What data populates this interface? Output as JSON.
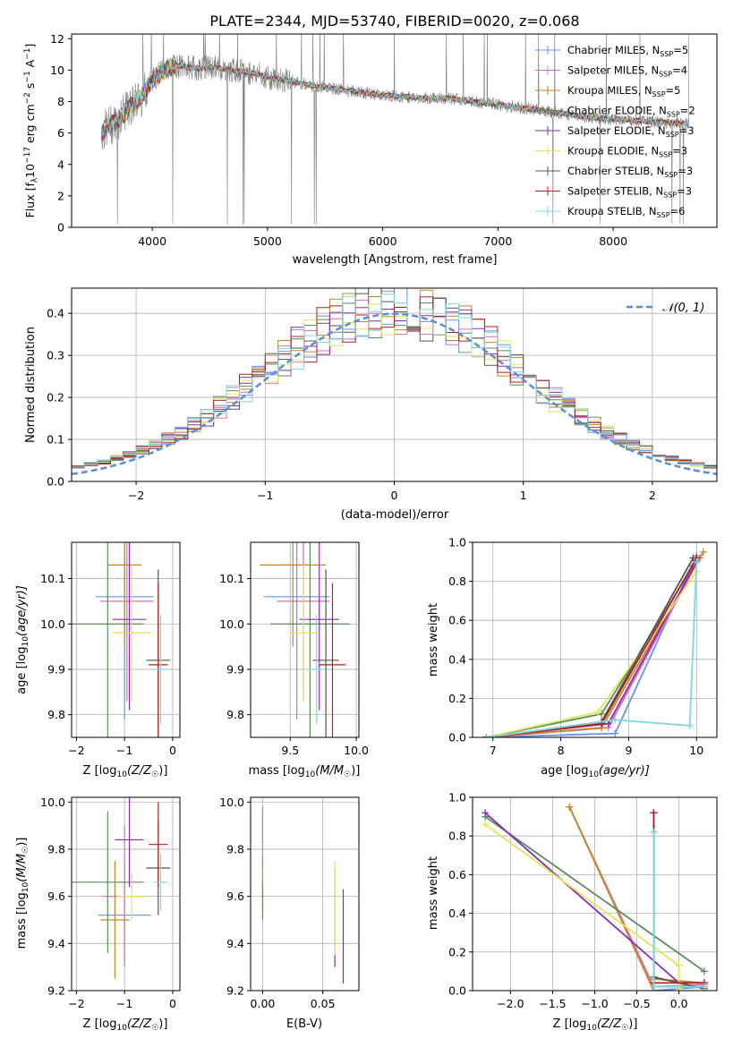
{
  "title": "PLATE=2344, MJD=53740, FIBERID=0020, z=0.068",
  "colors": [
    "#6495ED",
    "#DB70B8",
    "#C08A1E",
    "#5B8C5A",
    "#8B2BB9",
    "#E3E35A",
    "#555555",
    "#B22222",
    "#7FD7E0"
  ],
  "spectrum": {
    "xlabel": "wavelength [Angstrom, rest frame]",
    "ylabel_parts": [
      "Flux [f",
      "λ",
      "10",
      "−17",
      " erg cm",
      "−2",
      " s",
      "−1",
      " A",
      "−1",
      "]"
    ],
    "xticks": [
      "4000",
      "5000",
      "6000",
      "7000",
      "8000"
    ],
    "yticks": [
      "0",
      "2",
      "4",
      "6",
      "8",
      "10",
      "12"
    ],
    "xlim": [
      3300,
      8900
    ],
    "ylim": [
      0,
      12.3
    ],
    "legend": [
      {
        "name": "Chabrier MILES, N",
        "sub": "SSP",
        "val": "=5"
      },
      {
        "name": "Salpeter MILES, N",
        "sub": "SSP",
        "val": "=4"
      },
      {
        "name": "Kroupa MILES, N",
        "sub": "SSP",
        "val": "=5"
      },
      {
        "name": "Chabrier ELODIE, N",
        "sub": "SSP",
        "val": "=2"
      },
      {
        "name": "Salpeter ELODIE, N",
        "sub": "SSP",
        "val": "=3"
      },
      {
        "name": "Kroupa ELODIE, N",
        "sub": "SSP",
        "val": "=3"
      },
      {
        "name": "Chabrier STELIB, N",
        "sub": "SSP",
        "val": "=3"
      },
      {
        "name": "Salpeter STELIB, N",
        "sub": "SSP",
        "val": "=3"
      },
      {
        "name": "Kroupa STELIB, N",
        "sub": "SSP",
        "val": "=6"
      }
    ]
  },
  "chart_data": [
    {
      "type": "line",
      "title": "PLATE=2344, MJD=53740, FIBERID=0020, z=0.068",
      "xlabel": "wavelength [Angstrom, rest frame]",
      "ylabel": "Flux [fλ10−17 erg cm−2 s−1 A−1]",
      "xlim": [
        3300,
        8900
      ],
      "ylim": [
        0,
        12.3
      ],
      "series": [
        {
          "name": "data",
          "x": [
            3560,
            3600,
            3700,
            3800,
            3900,
            4000,
            4100,
            4200,
            4300,
            4400,
            4500,
            4600,
            4700,
            4800,
            4900,
            5000,
            5200,
            5400,
            5600,
            5800,
            6000,
            6200,
            6400,
            6600,
            6800,
            7000,
            7200,
            7400,
            7600,
            7800,
            8000,
            8200,
            8400,
            8600
          ],
          "y": [
            6.0,
            6.3,
            6.8,
            7.6,
            8.3,
            9.4,
            10.0,
            10.3,
            10.2,
            10.1,
            10.2,
            10.1,
            10.0,
            9.9,
            9.8,
            9.5,
            9.3,
            9.0,
            8.8,
            8.6,
            8.4,
            8.3,
            8.2,
            8.2,
            8.0,
            7.8,
            7.6,
            7.4,
            7.2,
            7.0,
            6.9,
            6.8,
            6.7,
            6.6
          ]
        }
      ]
    },
    {
      "type": "bar",
      "xlabel": "(data-model)/error",
      "ylabel": "Normed distribution",
      "xlim": [
        -2.5,
        2.5
      ],
      "ylim": [
        0,
        0.46
      ],
      "bin_width": 0.1,
      "reference_curve": "𝒩(0, 1)",
      "series": [
        {
          "name": "histogram envelope",
          "values": [
            0.04,
            0.05,
            0.06,
            0.06,
            0.08,
            0.1,
            0.13,
            0.17,
            0.22,
            0.26,
            0.3,
            0.34,
            0.37,
            0.39,
            0.4,
            0.39,
            0.37,
            0.34,
            0.3,
            0.26,
            0.21,
            0.17,
            0.13,
            0.09,
            0.07,
            0.05,
            0.04
          ]
        }
      ]
    },
    {
      "type": "scatter",
      "xlabel": "Z [log10(Z/Z☉)]",
      "ylabel": "age [log10(age/yr)]",
      "xlim": [
        -2.1,
        0.15
      ],
      "ylim": [
        9.75,
        10.18
      ],
      "points": [
        {
          "x": -1.0,
          "y": 10.06,
          "xerr": 0.6,
          "yerr": 0.27
        },
        {
          "x": -0.95,
          "y": 10.05,
          "xerr": 0.55,
          "yerr": 0.22
        },
        {
          "x": -1.0,
          "y": 10.13,
          "xerr": 0.35,
          "yerr": 0.18
        },
        {
          "x": -1.35,
          "y": 10.0,
          "xerr": 0.75,
          "yerr": 0.25
        },
        {
          "x": -0.9,
          "y": 10.01,
          "xerr": 0.35,
          "yerr": 0.2
        },
        {
          "x": -0.85,
          "y": 9.98,
          "xerr": 0.4,
          "yerr": 0.15
        },
        {
          "x": -0.3,
          "y": 9.92,
          "xerr": 0.25,
          "yerr": 0.2
        },
        {
          "x": -0.3,
          "y": 9.91,
          "xerr": 0.2,
          "yerr": 0.18
        },
        {
          "x": -0.25,
          "y": 9.9,
          "xerr": 0.15,
          "yerr": 0.12
        }
      ]
    },
    {
      "type": "scatter",
      "xlabel": "mass [log10(M/M☉)]",
      "ylabel": "",
      "xlim": [
        9.2,
        10.02
      ],
      "ylim": [
        9.75,
        10.18
      ],
      "points": [
        {
          "x": 9.55,
          "y": 10.06,
          "xerr": 0.25,
          "yerr": 0.27
        },
        {
          "x": 9.6,
          "y": 10.05,
          "xerr": 0.2,
          "yerr": 0.22
        },
        {
          "x": 9.52,
          "y": 10.13,
          "xerr": 0.25,
          "yerr": 0.18
        },
        {
          "x": 9.65,
          "y": 10.0,
          "xerr": 0.3,
          "yerr": 0.25
        },
        {
          "x": 9.72,
          "y": 10.01,
          "xerr": 0.15,
          "yerr": 0.2
        },
        {
          "x": 9.6,
          "y": 9.98,
          "xerr": 0.1,
          "yerr": 0.15
        },
        {
          "x": 9.77,
          "y": 9.92,
          "xerr": 0.1,
          "yerr": 0.2
        },
        {
          "x": 9.82,
          "y": 9.91,
          "xerr": 0.1,
          "yerr": 0.18
        },
        {
          "x": 9.7,
          "y": 9.9,
          "xerr": 0.07,
          "yerr": 0.12
        }
      ]
    },
    {
      "type": "line",
      "xlabel": "age [log10(age/yr)]",
      "ylabel": "mass weight",
      "xlim": [
        6.7,
        10.3
      ],
      "ylim": [
        0,
        1
      ],
      "series": [
        {
          "x": [
            6.9,
            8.8,
            10.0
          ],
          "y": [
            0.0,
            0.02,
            0.93
          ]
        },
        {
          "x": [
            6.9,
            8.7,
            10.05
          ],
          "y": [
            0.0,
            0.05,
            0.92
          ]
        },
        {
          "x": [
            6.9,
            8.6,
            10.1
          ],
          "y": [
            0.0,
            0.05,
            0.95
          ]
        },
        {
          "x": [
            6.9,
            8.6,
            9.95
          ],
          "y": [
            0.0,
            0.12,
            0.88
          ]
        },
        {
          "x": [
            6.9,
            8.7,
            10.0
          ],
          "y": [
            0.0,
            0.07,
            0.9
          ]
        },
        {
          "x": [
            6.9,
            8.55,
            10.0
          ],
          "y": [
            0.0,
            0.13,
            0.85
          ]
        },
        {
          "x": [
            6.9,
            8.6,
            9.95
          ],
          "y": [
            0.0,
            0.08,
            0.92
          ]
        },
        {
          "x": [
            6.9,
            8.6,
            10.0
          ],
          "y": [
            0.0,
            0.07,
            0.92
          ]
        },
        {
          "x": [
            6.9,
            8.8,
            9.9,
            10.0
          ],
          "y": [
            0.0,
            0.09,
            0.06,
            0.9
          ]
        }
      ]
    },
    {
      "type": "scatter",
      "xlabel": "Z [log10(Z/Z☉)]",
      "ylabel": "mass [log10(M/M☉)]",
      "xlim": [
        -2.1,
        0.15
      ],
      "ylim": [
        9.2,
        10.02
      ],
      "points": [
        {
          "x": -1.0,
          "y": 9.52,
          "xerr": 0.55,
          "yerr": 0.2
        },
        {
          "x": -1.0,
          "y": 9.6,
          "xerr": 0.45,
          "yerr": 0.3
        },
        {
          "x": -1.2,
          "y": 9.5,
          "xerr": 0.3,
          "yerr": 0.25
        },
        {
          "x": -1.35,
          "y": 9.66,
          "xerr": 0.75,
          "yerr": 0.3
        },
        {
          "x": -0.9,
          "y": 9.84,
          "xerr": 0.3,
          "yerr": 0.2
        },
        {
          "x": -0.85,
          "y": 9.6,
          "xerr": 0.3,
          "yerr": 0.1
        },
        {
          "x": -0.3,
          "y": 9.72,
          "xerr": 0.25,
          "yerr": 0.2
        },
        {
          "x": -0.3,
          "y": 9.82,
          "xerr": 0.2,
          "yerr": 0.18
        },
        {
          "x": -0.25,
          "y": 9.66,
          "xerr": 0.15,
          "yerr": 0.12
        }
      ]
    },
    {
      "type": "scatter",
      "xlabel": "E(B-V)",
      "ylabel": "",
      "xlim": [
        -0.01,
        0.08
      ],
      "ylim": [
        9.2,
        10.02
      ],
      "points": [
        {
          "x": 0.0,
          "y": 9.9,
          "yerr": 0.08
        },
        {
          "x": 0.0,
          "y": 9.85,
          "yerr": 0.12
        },
        {
          "x": 0.0,
          "y": 9.65,
          "yerr": 0.12
        },
        {
          "x": 0.0,
          "y": 9.58,
          "yerr": 0.08
        },
        {
          "x": 0.06,
          "y": 9.5,
          "yerr": 0.2
        },
        {
          "x": 0.06,
          "y": 9.55,
          "yerr": 0.2
        },
        {
          "x": 0.067,
          "y": 9.43,
          "yerr": 0.2
        }
      ]
    },
    {
      "type": "line",
      "xlabel": "Z [log10(Z/Z☉)]",
      "ylabel": "mass weight",
      "xlim": [
        -2.45,
        0.45
      ],
      "ylim": [
        0,
        1
      ],
      "series": [
        {
          "x": [
            -0.3,
            -0.3,
            0.3
          ],
          "y": [
            0.82,
            0.0,
            0.02
          ]
        },
        {
          "x": [
            -1.3,
            -0.3,
            0.3
          ],
          "y": [
            0.95,
            0.02,
            0.03
          ]
        },
        {
          "x": [
            -1.3,
            -0.3,
            -0.3,
            0.3
          ],
          "y": [
            0.95,
            0.0,
            0.06,
            0.04
          ]
        },
        {
          "x": [
            -2.3,
            0.3
          ],
          "y": [
            0.9,
            0.1
          ]
        },
        {
          "x": [
            -2.3,
            0.0,
            0.3
          ],
          "y": [
            0.92,
            0.04,
            0.04
          ]
        },
        {
          "x": [
            -2.3,
            0.0,
            0.0
          ],
          "y": [
            0.86,
            0.13,
            0.01
          ]
        },
        {
          "x": [
            -0.3,
            -0.3,
            0.3
          ],
          "y": [
            0.92,
            0.07,
            0.01
          ]
        },
        {
          "x": [
            -0.3,
            -0.3,
            0.3
          ],
          "y": [
            0.92,
            0.04,
            0.04
          ]
        },
        {
          "x": [
            -0.3,
            -0.3,
            0.3
          ],
          "y": [
            0.82,
            0.02,
            0.02
          ]
        }
      ]
    }
  ],
  "residuals": {
    "xlabel": "(data-model)/error",
    "ylabel": "Normed distribution",
    "legend": "𝒩(0, 1)",
    "xticks": [
      "−2",
      "−1",
      "0",
      "1",
      "2"
    ],
    "yticks": [
      "0.0",
      "0.1",
      "0.2",
      "0.3",
      "0.4"
    ]
  },
  "panels": {
    "age_Z": {
      "xlabel": "Z [log",
      "xsub": "10",
      "xrest": "(Z/Z",
      "xsun": "☉",
      "xend": ")]",
      "ylabel": "age  [log",
      "ysub": "10",
      "yrest": "(age/yr)]",
      "xticks": [
        "−2",
        "−1",
        "0"
      ],
      "yticks": [
        "9.8",
        "9.9",
        "10.0",
        "10.1"
      ]
    },
    "age_mass": {
      "xlabel": "mass [log",
      "xsub": "10",
      "xrest": "(M/M",
      "xsun": "☉",
      "xend": ")]",
      "xticks": [
        "9.5",
        "10.0"
      ],
      "yticks": [
        "9.8",
        "9.9",
        "10.0",
        "10.1"
      ]
    },
    "weight_age": {
      "xlabel": "age  [log",
      "xsub": "10",
      "xrest": "(age/yr)]",
      "ylabel": "mass weight",
      "xticks": [
        "7",
        "8",
        "9",
        "10"
      ],
      "yticks": [
        "0.0",
        "0.2",
        "0.4",
        "0.6",
        "0.8",
        "1.0"
      ]
    },
    "mass_Z": {
      "xlabel": "Z [log",
      "xsub": "10",
      "xrest": "(Z/Z",
      "xsun": "☉",
      "xend": ")]",
      "ylabel": "mass [log",
      "ysub": "10",
      "yrest": "(M/M",
      "ysun": "☉",
      "yend": ")]",
      "xticks": [
        "−2",
        "−1",
        "0"
      ],
      "yticks": [
        "9.2",
        "9.4",
        "9.6",
        "9.8",
        "10.0"
      ]
    },
    "mass_ebv": {
      "xlabel": "E(B-V)",
      "xticks": [
        "0.00",
        "0.05"
      ],
      "yticks": [
        "9.2",
        "9.4",
        "9.6",
        "9.8",
        "10.0"
      ]
    },
    "weight_Z": {
      "xlabel": "Z [log",
      "xsub": "10",
      "xrest": "(Z/Z",
      "xsun": "☉",
      "xend": ")]",
      "ylabel": "mass weight",
      "xticks": [
        "−2.0",
        "−1.5",
        "−1.0",
        "−0.5",
        "0.0"
      ],
      "yticks": [
        "0.0",
        "0.2",
        "0.4",
        "0.6",
        "0.8",
        "1.0"
      ]
    }
  }
}
